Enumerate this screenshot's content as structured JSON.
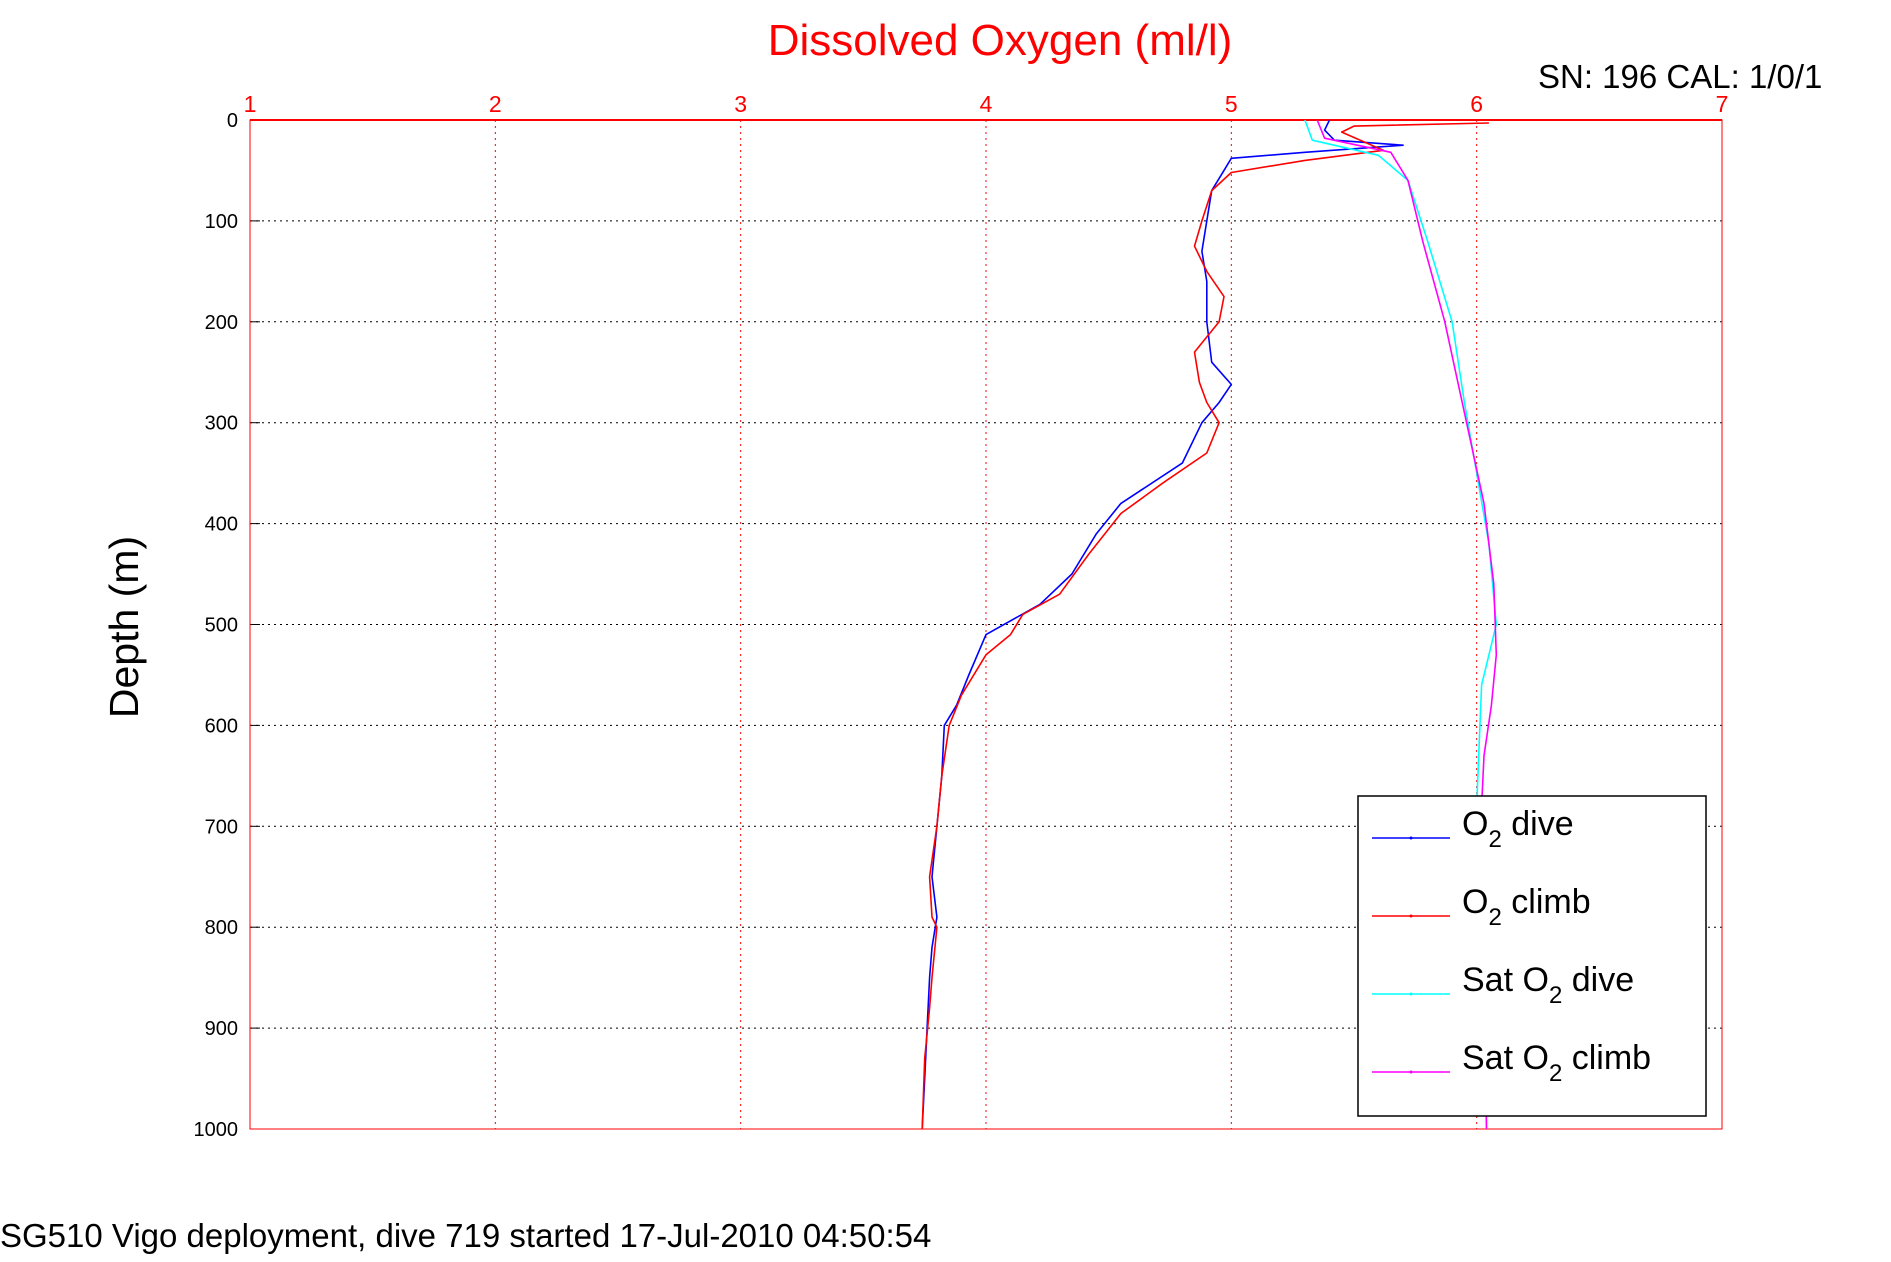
{
  "chart_data": {
    "type": "line",
    "title": "Dissolved Oxygen (ml/l)",
    "serial_label": "SN: 196  CAL: 1/0/1",
    "ylabel": "Depth (m)",
    "footer": "SG510 Vigo deployment, dive 719 started 17-Jul-2010 04:50:54",
    "xlim": [
      1,
      7
    ],
    "ylim": [
      0,
      1000
    ],
    "y_reversed": true,
    "x_axis_position": "top",
    "x_ticks": [
      1,
      2,
      3,
      4,
      5,
      6,
      7
    ],
    "y_ticks": [
      0,
      100,
      200,
      300,
      400,
      500,
      600,
      700,
      800,
      900,
      1000
    ],
    "grid": true,
    "legend_position": "bottom-right",
    "series": [
      {
        "name": "O₂ dive",
        "legend_main": "O",
        "legend_sub": "2",
        "legend_rest": " dive",
        "color": "#0000ff",
        "points": [
          [
            5.4,
            0
          ],
          [
            5.38,
            10
          ],
          [
            5.42,
            20
          ],
          [
            5.7,
            25
          ],
          [
            5.3,
            32
          ],
          [
            5.0,
            38
          ],
          [
            4.97,
            50
          ],
          [
            4.92,
            70
          ],
          [
            4.9,
            100
          ],
          [
            4.88,
            130
          ],
          [
            4.9,
            160
          ],
          [
            4.9,
            200
          ],
          [
            4.92,
            240
          ],
          [
            5.0,
            262
          ],
          [
            4.95,
            280
          ],
          [
            4.88,
            300
          ],
          [
            4.8,
            340
          ],
          [
            4.55,
            380
          ],
          [
            4.45,
            410
          ],
          [
            4.35,
            450
          ],
          [
            4.22,
            480
          ],
          [
            4.0,
            510
          ],
          [
            3.93,
            550
          ],
          [
            3.88,
            580
          ],
          [
            3.83,
            600
          ],
          [
            3.82,
            650
          ],
          [
            3.8,
            700
          ],
          [
            3.78,
            750
          ],
          [
            3.8,
            790
          ],
          [
            3.78,
            820
          ],
          [
            3.77,
            850
          ],
          [
            3.76,
            900
          ],
          [
            3.75,
            950
          ],
          [
            3.74,
            1000
          ]
        ]
      },
      {
        "name": "O₂ climb",
        "legend_main": "O",
        "legend_sub": "2",
        "legend_rest": " climb",
        "color": "#ff0000",
        "points": [
          [
            6.05,
            3
          ],
          [
            5.5,
            6
          ],
          [
            5.45,
            12
          ],
          [
            5.62,
            30
          ],
          [
            5.3,
            40
          ],
          [
            5.0,
            52
          ],
          [
            4.92,
            70
          ],
          [
            4.88,
            100
          ],
          [
            4.85,
            125
          ],
          [
            4.9,
            150
          ],
          [
            4.97,
            175
          ],
          [
            4.95,
            200
          ],
          [
            4.85,
            230
          ],
          [
            4.87,
            260
          ],
          [
            4.9,
            280
          ],
          [
            4.95,
            300
          ],
          [
            4.9,
            330
          ],
          [
            4.72,
            360
          ],
          [
            4.55,
            390
          ],
          [
            4.42,
            430
          ],
          [
            4.3,
            470
          ],
          [
            4.15,
            490
          ],
          [
            4.1,
            510
          ],
          [
            4.0,
            530
          ],
          [
            3.9,
            570
          ],
          [
            3.85,
            600
          ],
          [
            3.82,
            650
          ],
          [
            3.8,
            700
          ],
          [
            3.77,
            750
          ],
          [
            3.78,
            790
          ],
          [
            3.8,
            800
          ],
          [
            3.78,
            850
          ],
          [
            3.77,
            880
          ],
          [
            3.75,
            930
          ],
          [
            3.74,
            1000
          ]
        ]
      },
      {
        "name": "Sat O₂ dive",
        "legend_main": "Sat O",
        "legend_sub": "2",
        "legend_rest": " dive",
        "color": "#00ffff",
        "points": [
          [
            5.3,
            0
          ],
          [
            5.33,
            20
          ],
          [
            5.6,
            35
          ],
          [
            5.72,
            60
          ],
          [
            5.8,
            120
          ],
          [
            5.9,
            200
          ],
          [
            5.95,
            280
          ],
          [
            6.0,
            350
          ],
          [
            6.05,
            420
          ],
          [
            6.08,
            500
          ],
          [
            6.02,
            560
          ],
          [
            6.01,
            620
          ],
          [
            6.0,
            680
          ],
          [
            6.02,
            750
          ],
          [
            6.03,
            850
          ],
          [
            6.04,
            1000
          ]
        ]
      },
      {
        "name": "Sat O₂ climb",
        "legend_main": "Sat O",
        "legend_sub": "2",
        "legend_rest": " climb",
        "color": "#ff00ff",
        "points": [
          [
            5.35,
            0
          ],
          [
            5.38,
            18
          ],
          [
            5.65,
            32
          ],
          [
            5.72,
            60
          ],
          [
            5.78,
            120
          ],
          [
            5.87,
            200
          ],
          [
            5.95,
            290
          ],
          [
            6.03,
            380
          ],
          [
            6.07,
            460
          ],
          [
            6.08,
            530
          ],
          [
            6.06,
            580
          ],
          [
            6.03,
            630
          ],
          [
            6.02,
            680
          ],
          [
            6.02,
            760
          ],
          [
            6.03,
            850
          ],
          [
            6.04,
            1000
          ]
        ]
      }
    ]
  }
}
